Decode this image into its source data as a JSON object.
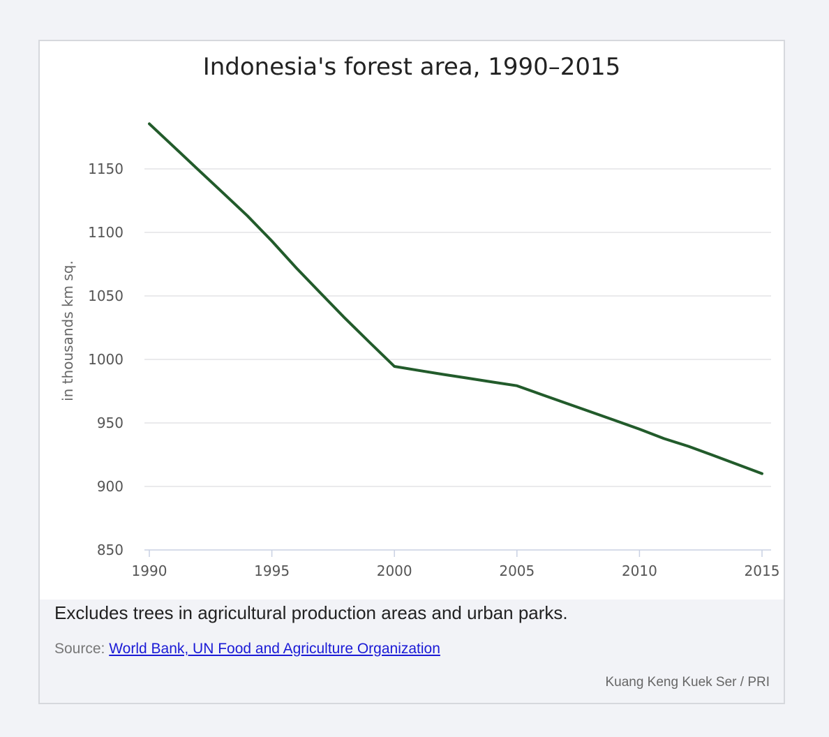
{
  "chart_data": {
    "type": "line",
    "title": "Indonesia's forest area, 1990–2015",
    "xlabel": "",
    "ylabel": "in thousands km sq.",
    "x": [
      1990,
      1991,
      1992,
      1993,
      1994,
      1995,
      1996,
      1997,
      1998,
      1999,
      2000,
      2001,
      2002,
      2003,
      2004,
      2005,
      2006,
      2007,
      2008,
      2009,
      2010,
      2011,
      2012,
      2013,
      2014,
      2015
    ],
    "series": [
      {
        "values": [
          1185.5,
          1167.4,
          1149.3,
          1131.2,
          1113.1,
          1093.2,
          1072.0,
          1052.0,
          1032.1,
          1013.2,
          994.5,
          991.3,
          988.2,
          985.2,
          982.2,
          979.3,
          972.4,
          965.6,
          958.8,
          952.0,
          945.1,
          937.7,
          931.6,
          924.5,
          917.3,
          910.1
        ],
        "color": "#225b2b"
      }
    ],
    "xticks": [
      "1990",
      "1995",
      "2000",
      "2005",
      "2010",
      "2015"
    ],
    "yticks": [
      "850",
      "900",
      "950",
      "1000",
      "1050",
      "1100",
      "1150"
    ],
    "xlim": [
      1990,
      2015
    ],
    "ylim": [
      850,
      1200
    ],
    "grid": true,
    "legend": false
  },
  "footer": {
    "note": "Excludes trees in agricultural production areas and urban parks.",
    "source_label": "Source:",
    "source_link": "World Bank, UN Food and Agriculture Organization",
    "credit": "Kuang Keng Kuek Ser / PRI"
  },
  "colors": {
    "line": "#225b2b",
    "grid": "#e3e4e6",
    "axis": "#c9d1e3",
    "footer_bg": "#f2f3f7",
    "link": "#1a1ad6"
  }
}
